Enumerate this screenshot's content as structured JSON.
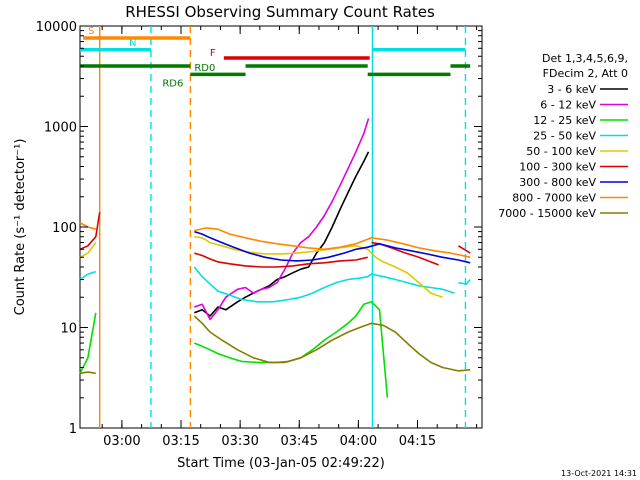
{
  "chart_data": {
    "type": "line",
    "title": "RHESSI Observing Summary Count Rates",
    "xlabel": "Start Time (03-Jan-05 02:49:22)",
    "ylabel": "Count Rate (s⁻¹ detector⁻¹)",
    "yscale": "log",
    "ylim": [
      1,
      10000
    ],
    "xlim_minutes_after_start": [
      0,
      102
    ],
    "x_ticks": [
      {
        "label": "03:00",
        "minute": 10.63
      },
      {
        "label": "03:15",
        "minute": 25.63
      },
      {
        "label": "03:30",
        "minute": 40.63
      },
      {
        "label": "03:45",
        "minute": 55.63
      },
      {
        "label": "04:00",
        "minute": 70.63
      },
      {
        "label": "04:15",
        "minute": 85.63
      }
    ],
    "y_ticks": [
      {
        "label": "1",
        "value": 1
      },
      {
        "label": "10",
        "value": 10
      },
      {
        "label": "100",
        "value": 100
      },
      {
        "label": "1000",
        "value": 1000
      },
      {
        "label": "10000",
        "value": 10000
      }
    ],
    "legend": {
      "placement": "right",
      "header": [
        "Det 1,3,4,5,6,9,",
        "FDecim 2, Att 0"
      ],
      "entries": [
        {
          "label": "3 - 6 keV",
          "color": "#000000"
        },
        {
          "label": "6 - 12 keV",
          "color": "#e000e0"
        },
        {
          "label": "12 - 25 keV",
          "color": "#00e000"
        },
        {
          "label": "25 - 50 keV",
          "color": "#00e0e0"
        },
        {
          "label": "50 - 100 keV",
          "color": "#e0c800"
        },
        {
          "label": "100 - 300 keV",
          "color": "#e00000"
        },
        {
          "label": "300 - 800 keV",
          "color": "#0000e0"
        },
        {
          "label": "800 - 7000 keV",
          "color": "#ff8800"
        },
        {
          "label": "7000 - 15000 keV",
          "color": "#8a7a00"
        }
      ]
    },
    "series": [
      {
        "name": "3 - 6 keV",
        "color": "#000000",
        "segments": [
          [
            [
              29,
              14
            ],
            [
              31,
              15
            ],
            [
              33,
              13
            ],
            [
              35,
              16
            ],
            [
              37,
              15
            ],
            [
              40,
              18
            ],
            [
              42,
              20
            ],
            [
              44,
              22
            ],
            [
              46,
              24
            ],
            [
              48,
              26
            ],
            [
              50,
              30
            ],
            [
              52,
              32
            ],
            [
              54,
              35
            ],
            [
              56,
              38
            ],
            [
              58,
              40
            ],
            [
              60,
              55
            ],
            [
              62,
              70
            ],
            [
              64,
              100
            ],
            [
              66,
              150
            ],
            [
              68,
              220
            ],
            [
              70,
              320
            ],
            [
              72,
              450
            ],
            [
              73.2,
              560
            ]
          ]
        ]
      },
      {
        "name": "6 - 12 keV",
        "color": "#e000e0",
        "segments": [
          [
            [
              29,
              16
            ],
            [
              31,
              17
            ],
            [
              33,
              12
            ],
            [
              35,
              15
            ],
            [
              37,
              20
            ],
            [
              40,
              24
            ],
            [
              42,
              25
            ],
            [
              44,
              22
            ],
            [
              46,
              24
            ],
            [
              48,
              25
            ],
            [
              50,
              28
            ],
            [
              52,
              38
            ],
            [
              54,
              55
            ],
            [
              56,
              70
            ],
            [
              58,
              80
            ],
            [
              60,
              100
            ],
            [
              62,
              130
            ],
            [
              64,
              180
            ],
            [
              66,
              260
            ],
            [
              68,
              380
            ],
            [
              70,
              560
            ],
            [
              72,
              850
            ],
            [
              73.2,
              1200
            ]
          ]
        ]
      },
      {
        "name": "12 - 25 keV",
        "color": "#00e000",
        "segments": [
          [
            [
              0,
              3.5
            ],
            [
              2,
              5
            ],
            [
              4,
              14
            ]
          ],
          [
            [
              29,
              7
            ],
            [
              31,
              6.5
            ],
            [
              33,
              6
            ],
            [
              35,
              5.5
            ],
            [
              38,
              5
            ],
            [
              41,
              4.6
            ],
            [
              45,
              4.5
            ],
            [
              50,
              4.5
            ],
            [
              53,
              4.6
            ],
            [
              56,
              5
            ],
            [
              59,
              6
            ],
            [
              62,
              7.5
            ],
            [
              65,
              9
            ],
            [
              68,
              11
            ],
            [
              70,
              13
            ],
            [
              72,
              17
            ],
            [
              74,
              18
            ],
            [
              76,
              15
            ],
            [
              78,
              2
            ]
          ]
        ]
      },
      {
        "name": "25 - 50 keV",
        "color": "#00e0e0",
        "segments": [
          [
            [
              0,
              30
            ],
            [
              2,
              34
            ],
            [
              4,
              36
            ]
          ],
          [
            [
              29,
              40
            ],
            [
              31,
              32
            ],
            [
              33,
              27
            ],
            [
              35,
              23
            ],
            [
              38,
              21
            ],
            [
              41,
              19
            ],
            [
              45,
              18
            ],
            [
              49,
              18
            ],
            [
              53,
              19
            ],
            [
              56,
              20
            ],
            [
              59,
              22
            ],
            [
              62,
              25
            ],
            [
              65,
              28
            ],
            [
              68,
              30
            ],
            [
              71,
              31
            ],
            [
              73,
              32
            ],
            [
              74,
              34
            ],
            [
              77,
              32
            ],
            [
              80,
              30
            ],
            [
              83,
              28
            ],
            [
              86,
              26
            ],
            [
              89,
              25
            ],
            [
              92,
              24
            ],
            [
              95,
              22
            ]
          ],
          [
            [
              96,
              28
            ],
            [
              98,
              27
            ],
            [
              99,
              30
            ]
          ]
        ]
      },
      {
        "name": "50 - 100 keV",
        "color": "#e0c800",
        "segments": [
          [
            [
              0,
              50
            ],
            [
              2,
              55
            ],
            [
              4,
              70
            ]
          ],
          [
            [
              29,
              80
            ],
            [
              31,
              78
            ],
            [
              33,
              70
            ],
            [
              36,
              65
            ],
            [
              39,
              60
            ],
            [
              43,
              56
            ],
            [
              47,
              54
            ],
            [
              51,
              54
            ],
            [
              55,
              55
            ],
            [
              59,
              57
            ],
            [
              63,
              60
            ],
            [
              67,
              63
            ],
            [
              70,
              65
            ],
            [
              73,
              60
            ],
            [
              75,
              50
            ],
            [
              77,
              45
            ],
            [
              80,
              40
            ],
            [
              83,
              35
            ],
            [
              86,
              28
            ],
            [
              89,
              22
            ],
            [
              92,
              20
            ]
          ]
        ]
      },
      {
        "name": "100 - 300 keV",
        "color": "#e00000",
        "segments": [
          [
            [
              0,
              60
            ],
            [
              2,
              65
            ],
            [
              4,
              80
            ],
            [
              5,
              140
            ]
          ],
          [
            [
              29,
              55
            ],
            [
              31,
              52
            ],
            [
              33,
              48
            ],
            [
              35,
              45
            ],
            [
              38,
              43
            ],
            [
              42,
              41
            ],
            [
              46,
              40
            ],
            [
              50,
              40
            ],
            [
              54,
              41
            ],
            [
              58,
              43
            ],
            [
              62,
              44
            ],
            [
              66,
              46
            ],
            [
              70,
              47
            ],
            [
              73,
              50
            ]
          ],
          [
            [
              74,
              70
            ],
            [
              76,
              68
            ],
            [
              79,
              62
            ],
            [
              82,
              56
            ],
            [
              86,
              50
            ],
            [
              89,
              45
            ],
            [
              91,
              42
            ]
          ],
          [
            [
              96,
              65
            ],
            [
              99,
              55
            ]
          ]
        ]
      },
      {
        "name": "300 - 800 keV",
        "color": "#0000e0",
        "segments": [
          [
            [
              29,
              90
            ],
            [
              31,
              85
            ],
            [
              33,
              78
            ],
            [
              36,
              70
            ],
            [
              39,
              63
            ],
            [
              43,
              55
            ],
            [
              47,
              50
            ],
            [
              51,
              47
            ],
            [
              55,
              46
            ],
            [
              59,
              47
            ],
            [
              63,
              50
            ],
            [
              67,
              55
            ],
            [
              70,
              60
            ],
            [
              73,
              63
            ],
            [
              76,
              68
            ],
            [
              80,
              62
            ],
            [
              84,
              58
            ],
            [
              88,
              54
            ],
            [
              92,
              50
            ],
            [
              96,
              47
            ],
            [
              99,
              44
            ]
          ]
        ]
      },
      {
        "name": "800 - 7000 keV",
        "color": "#ff8800",
        "segments": [
          [
            [
              0,
              110
            ],
            [
              2,
              100
            ],
            [
              4,
              95
            ]
          ],
          [
            [
              29,
              92
            ],
            [
              32,
              98
            ],
            [
              35,
              95
            ],
            [
              38,
              85
            ],
            [
              42,
              78
            ],
            [
              46,
              72
            ],
            [
              50,
              68
            ],
            [
              54,
              65
            ],
            [
              58,
              62
            ],
            [
              62,
              60
            ],
            [
              66,
              63
            ],
            [
              70,
              68
            ],
            [
              74,
              78
            ],
            [
              78,
              74
            ],
            [
              82,
              68
            ],
            [
              86,
              62
            ],
            [
              90,
              58
            ],
            [
              94,
              55
            ],
            [
              97,
              52
            ],
            [
              99,
              50
            ]
          ]
        ]
      },
      {
        "name": "7000 - 15000 keV",
        "color": "#8a7a00",
        "segments": [
          [
            [
              0,
              3.5
            ],
            [
              2,
              3.6
            ],
            [
              4,
              3.5
            ]
          ],
          [
            [
              29,
              13
            ],
            [
              31,
              11
            ],
            [
              33,
              9
            ],
            [
              36,
              7.5
            ],
            [
              40,
              6
            ],
            [
              44,
              5
            ],
            [
              48,
              4.5
            ],
            [
              52,
              4.5
            ],
            [
              56,
              5
            ],
            [
              60,
              6
            ],
            [
              64,
              7.5
            ],
            [
              68,
              9
            ],
            [
              71,
              10
            ],
            [
              74,
              11
            ],
            [
              77,
              10.5
            ],
            [
              80,
              9
            ],
            [
              83,
              7
            ],
            [
              86,
              5.5
            ],
            [
              89,
              4.5
            ],
            [
              92,
              4
            ],
            [
              96,
              3.7
            ],
            [
              99,
              3.8
            ]
          ]
        ]
      }
    ],
    "vertical_markers": [
      {
        "minute": 5.0,
        "color": "#ff8800",
        "style": "solid"
      },
      {
        "minute": 18.0,
        "color": "#00e0e0",
        "style": "dashed"
      },
      {
        "minute": 28.0,
        "color": "#ff8800",
        "style": "dashed"
      },
      {
        "minute": 74.2,
        "color": "#00e0e0",
        "style": "solid"
      },
      {
        "minute": 97.8,
        "color": "#00e0e0",
        "style": "dashed"
      }
    ],
    "flag_bars": [
      {
        "label": "S",
        "color": "#ff8800",
        "y": 7600,
        "ranges": [
          [
            0.8,
            28
          ]
        ]
      },
      {
        "label": "N",
        "color": "#00e0e0",
        "y": 5800,
        "ranges": [
          [
            0,
            18
          ],
          [
            74.2,
            97.8
          ]
        ]
      },
      {
        "label": "F",
        "color": "#e00000",
        "y": 4800,
        "ranges": [
          [
            36.5,
            73.5
          ]
        ]
      },
      {
        "label": "RD0",
        "color": "#007a00",
        "y": 4000,
        "ranges": [
          [
            0,
            28
          ],
          [
            42,
            73
          ],
          [
            94,
            99
          ]
        ]
      },
      {
        "label": "RD6",
        "color": "#007a00",
        "y": 3300,
        "ranges": [
          [
            28,
            42
          ],
          [
            73,
            94
          ]
        ]
      }
    ],
    "footer_date": "13-Oct-2021 14:31"
  }
}
